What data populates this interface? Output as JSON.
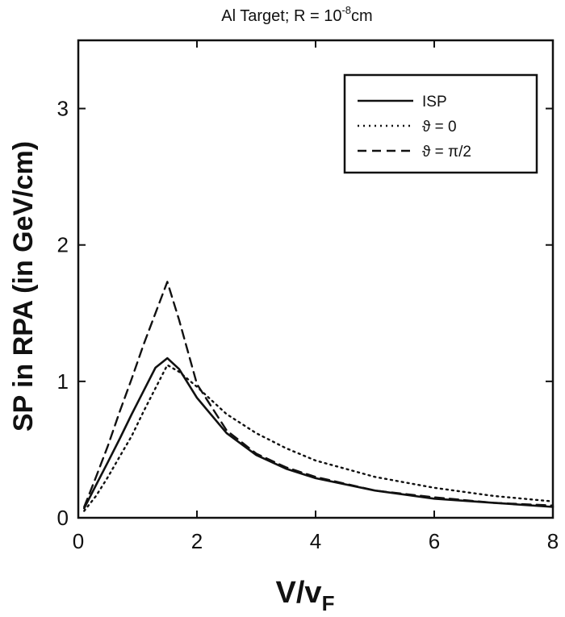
{
  "chart_data": {
    "type": "line",
    "title": "Al Target; R = 10",
    "title_superscript": "-8",
    "title_suffix": "cm",
    "xlabel": "V/v",
    "xlabel_subscript": "F",
    "ylabel": "SP in RPA (in GeV/cm)",
    "xlim": [
      0,
      8
    ],
    "ylim": [
      0,
      3.5
    ],
    "xticks": [
      0,
      2,
      4,
      6,
      8
    ],
    "yticks": [
      0,
      1,
      2,
      3
    ],
    "xtick_labels": [
      "0",
      "2",
      "4",
      "6",
      "8"
    ],
    "ytick_labels": [
      "0",
      "1",
      "2",
      "3"
    ],
    "grid": false,
    "legend_position": "top-right",
    "series": [
      {
        "name": "ISP",
        "style": "solid",
        "x": [
          0.1,
          0.3,
          0.5,
          0.7,
          0.9,
          1.1,
          1.3,
          1.5,
          1.7,
          2.0,
          2.5,
          3.0,
          3.5,
          4.0,
          5.0,
          6.0,
          7.0,
          8.0
        ],
        "y": [
          0.07,
          0.24,
          0.41,
          0.58,
          0.76,
          0.93,
          1.1,
          1.17,
          1.09,
          0.88,
          0.62,
          0.46,
          0.36,
          0.29,
          0.2,
          0.14,
          0.11,
          0.08
        ]
      },
      {
        "name": "ϑ = 0",
        "style": "dotted",
        "x": [
          0.1,
          0.3,
          0.5,
          0.7,
          0.9,
          1.1,
          1.3,
          1.5,
          1.7,
          2.0,
          2.5,
          3.0,
          3.5,
          4.0,
          5.0,
          6.0,
          7.0,
          8.0
        ],
        "y": [
          0.05,
          0.16,
          0.3,
          0.45,
          0.6,
          0.78,
          0.95,
          1.12,
          1.07,
          0.96,
          0.76,
          0.62,
          0.51,
          0.42,
          0.3,
          0.22,
          0.16,
          0.12
        ]
      },
      {
        "name": "ϑ = π/2",
        "style": "dashed",
        "x": [
          0.1,
          0.3,
          0.5,
          0.7,
          0.9,
          1.1,
          1.3,
          1.5,
          1.7,
          2.0,
          2.5,
          3.0,
          3.5,
          4.0,
          5.0,
          6.0,
          7.0,
          8.0
        ],
        "y": [
          0.08,
          0.3,
          0.53,
          0.78,
          1.02,
          1.27,
          1.5,
          1.73,
          1.45,
          0.98,
          0.64,
          0.47,
          0.37,
          0.3,
          0.2,
          0.15,
          0.11,
          0.09
        ]
      }
    ]
  }
}
